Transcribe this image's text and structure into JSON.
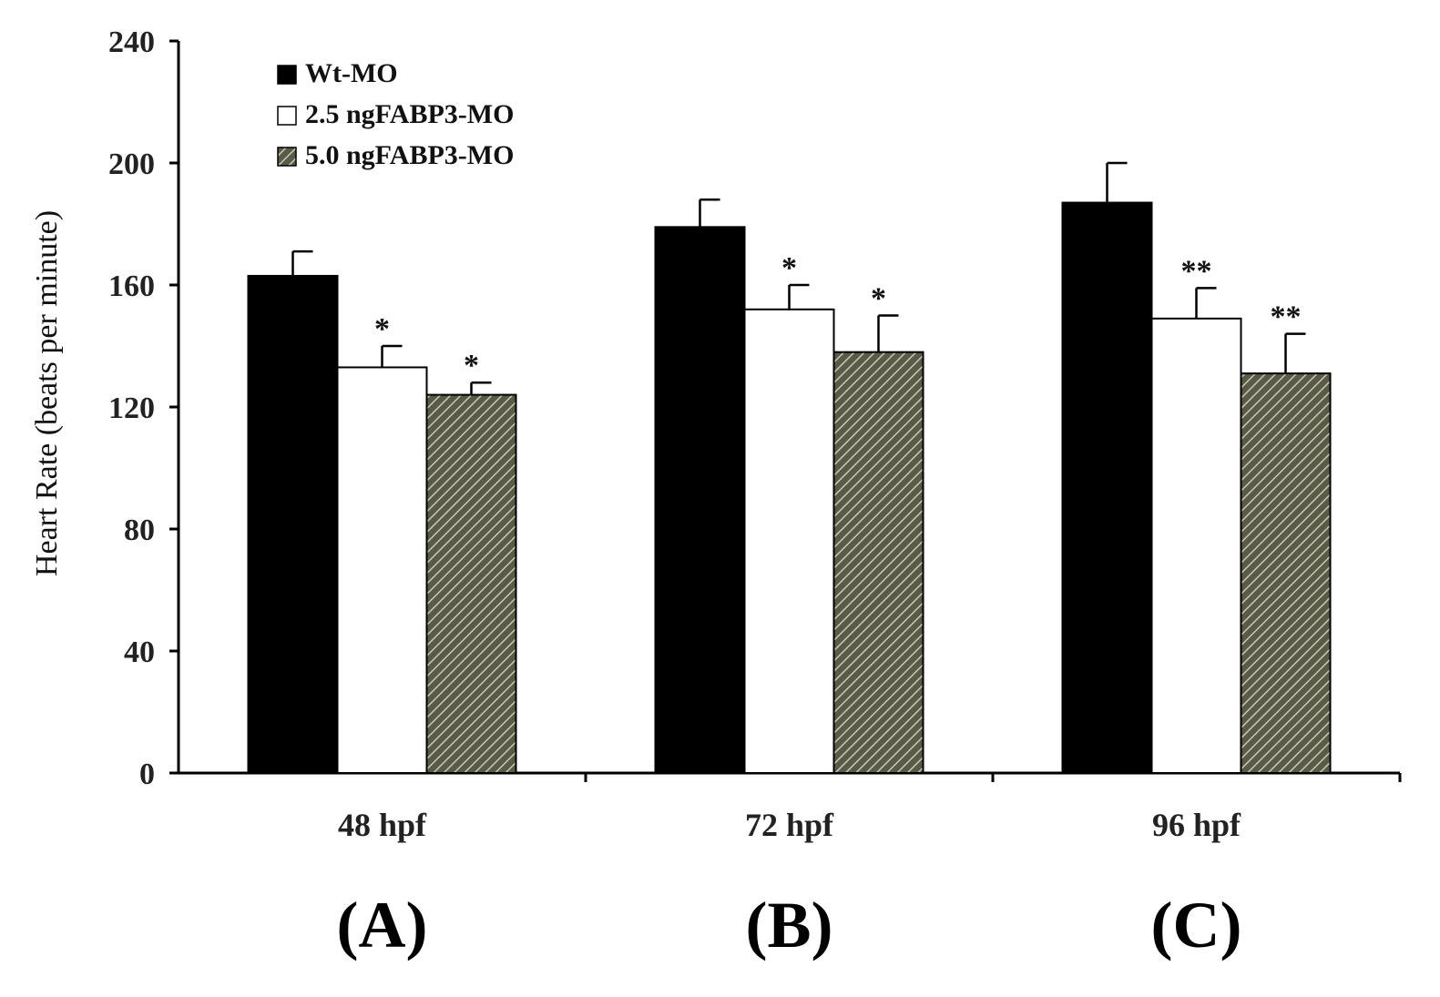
{
  "chart_data": {
    "type": "bar",
    "ylabel": "Heart Rate (beats per minute)",
    "ylim": [
      0,
      240
    ],
    "yticks": [
      0,
      40,
      80,
      120,
      160,
      200,
      240
    ],
    "categories": [
      "48 hpf",
      "72 hpf",
      "96 hpf"
    ],
    "panel_labels": [
      "(A)",
      "(B)",
      "(C)"
    ],
    "legend_position": "top-left",
    "grid": false,
    "series": [
      {
        "name": "Wt-MO",
        "values": [
          163,
          179,
          187
        ],
        "errors": [
          8,
          9,
          13
        ],
        "significance": [
          "",
          "",
          ""
        ],
        "fill": "#000000",
        "pattern": "solid"
      },
      {
        "name": "2.5 ngFABP3-MO",
        "values": [
          133,
          152,
          149
        ],
        "errors": [
          7,
          8,
          10
        ],
        "significance": [
          "*",
          "*",
          "**"
        ],
        "fill": "#ffffff",
        "pattern": "solid"
      },
      {
        "name": "5.0 ngFABP3-MO",
        "values": [
          124,
          138,
          131
        ],
        "errors": [
          4,
          12,
          13
        ],
        "significance": [
          "*",
          "*",
          "**"
        ],
        "fill": "#6b6b55",
        "pattern": "diagonal-hatch"
      }
    ]
  }
}
